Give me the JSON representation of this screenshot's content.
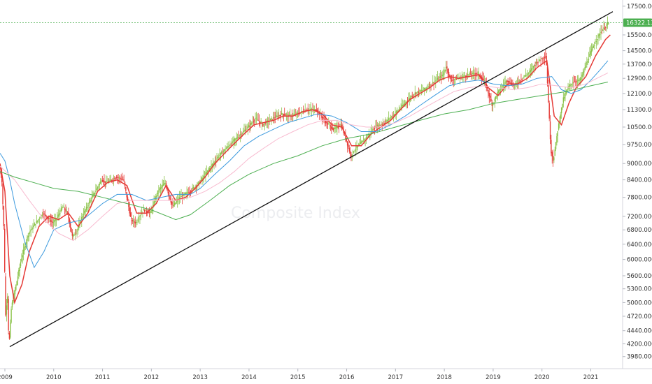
{
  "chart_data": {
    "type": "candlestick",
    "title": "",
    "watermark": "Composite Index",
    "xlabel": "",
    "ylabel": "",
    "scale": "log",
    "ylim": [
      3850,
      17700
    ],
    "xlim": [
      2008.9,
      2021.58
    ],
    "grid": false,
    "legend": "none",
    "x_ticks": [
      {
        "label": "2009",
        "x": 2009.0
      },
      {
        "label": "2010",
        "x": 2010.0
      },
      {
        "label": "2011",
        "x": 2011.0
      },
      {
        "label": "2012",
        "x": 2012.0
      },
      {
        "label": "2013",
        "x": 2013.0
      },
      {
        "label": "2014",
        "x": 2014.0
      },
      {
        "label": "2015",
        "x": 2015.0
      },
      {
        "label": "2016",
        "x": 2016.0
      },
      {
        "label": "2017",
        "x": 2017.0
      },
      {
        "label": "2018",
        "x": 2018.0
      },
      {
        "label": "2019",
        "x": 2019.0
      },
      {
        "label": "2020",
        "x": 2020.0
      },
      {
        "label": "2021",
        "x": 2021.0
      }
    ],
    "y_ticks": [
      {
        "label": "17500.000",
        "v": 17500
      },
      {
        "label": "15500.000",
        "v": 15500
      },
      {
        "label": "14500.000",
        "v": 14500
      },
      {
        "label": "13700.000",
        "v": 13700
      },
      {
        "label": "12900.000",
        "v": 12900
      },
      {
        "label": "12100.000",
        "v": 12100
      },
      {
        "label": "11300.000",
        "v": 11300
      },
      {
        "label": "10500.000",
        "v": 10500
      },
      {
        "label": "9750.000",
        "v": 9750
      },
      {
        "label": "9000.000",
        "v": 9000
      },
      {
        "label": "8400.000",
        "v": 8400
      },
      {
        "label": "7800.000",
        "v": 7800
      },
      {
        "label": "7200.000",
        "v": 7200
      },
      {
        "label": "6800.000",
        "v": 6800
      },
      {
        "label": "6400.000",
        "v": 6400
      },
      {
        "label": "6000.000",
        "v": 6000
      },
      {
        "label": "5600.000",
        "v": 5600
      },
      {
        "label": "5300.000",
        "v": 5300
      },
      {
        "label": "5000.000",
        "v": 5000
      },
      {
        "label": "4720.000",
        "v": 4720
      },
      {
        "label": "4440.000",
        "v": 4440
      },
      {
        "label": "4200.000",
        "v": 4200
      },
      {
        "label": "3980.000",
        "v": 3980
      }
    ],
    "last_price": {
      "label": "16322.131",
      "value": 16322.131,
      "color": "#4caf50"
    },
    "price_path": [
      [
        2008.9,
        8700
      ],
      [
        2008.95,
        8600
      ],
      [
        2009.0,
        6700
      ],
      [
        2009.03,
        4700
      ],
      [
        2009.07,
        5200
      ],
      [
        2009.1,
        4150
      ],
      [
        2009.15,
        4900
      ],
      [
        2009.25,
        5400
      ],
      [
        2009.35,
        6000
      ],
      [
        2009.5,
        6700
      ],
      [
        2009.65,
        7000
      ],
      [
        2009.8,
        7300
      ],
      [
        2010.0,
        7000
      ],
      [
        2010.1,
        7200
      ],
      [
        2010.2,
        7500
      ],
      [
        2010.3,
        7300
      ],
      [
        2010.4,
        6600
      ],
      [
        2010.5,
        6800
      ],
      [
        2010.6,
        7200
      ],
      [
        2010.8,
        7800
      ],
      [
        2011.0,
        8400
      ],
      [
        2011.1,
        8300
      ],
      [
        2011.3,
        8500
      ],
      [
        2011.45,
        8400
      ],
      [
        2011.6,
        7100
      ],
      [
        2011.7,
        7000
      ],
      [
        2011.85,
        7400
      ],
      [
        2012.0,
        7300
      ],
      [
        2012.15,
        8000
      ],
      [
        2012.3,
        8300
      ],
      [
        2012.45,
        7500
      ],
      [
        2012.6,
        7800
      ],
      [
        2012.8,
        8000
      ],
      [
        2013.0,
        8300
      ],
      [
        2013.2,
        8800
      ],
      [
        2013.4,
        9300
      ],
      [
        2013.6,
        9700
      ],
      [
        2013.8,
        10100
      ],
      [
        2014.0,
        10500
      ],
      [
        2014.15,
        10900
      ],
      [
        2014.3,
        10600
      ],
      [
        2014.5,
        10900
      ],
      [
        2014.7,
        11100
      ],
      [
        2014.85,
        11000
      ],
      [
        2015.0,
        11100
      ],
      [
        2015.2,
        11300
      ],
      [
        2015.4,
        11300
      ],
      [
        2015.6,
        10700
      ],
      [
        2015.75,
        10400
      ],
      [
        2015.9,
        10600
      ],
      [
        2016.0,
        10000
      ],
      [
        2016.1,
        9300
      ],
      [
        2016.2,
        9600
      ],
      [
        2016.4,
        10000
      ],
      [
        2016.6,
        10500
      ],
      [
        2016.8,
        10700
      ],
      [
        2017.0,
        11100
      ],
      [
        2017.2,
        11600
      ],
      [
        2017.4,
        12100
      ],
      [
        2017.6,
        12300
      ],
      [
        2017.8,
        12700
      ],
      [
        2018.0,
        13100
      ],
      [
        2018.05,
        13600
      ],
      [
        2018.15,
        12800
      ],
      [
        2018.3,
        12900
      ],
      [
        2018.5,
        13100
      ],
      [
        2018.7,
        13200
      ],
      [
        2018.85,
        12700
      ],
      [
        2019.0,
        11500
      ],
      [
        2019.1,
        12100
      ],
      [
        2019.3,
        12800
      ],
      [
        2019.45,
        12500
      ],
      [
        2019.6,
        12900
      ],
      [
        2019.75,
        13200
      ],
      [
        2019.9,
        13800
      ],
      [
        2020.1,
        14200
      ],
      [
        2020.2,
        9500
      ],
      [
        2020.25,
        9100
      ],
      [
        2020.35,
        10500
      ],
      [
        2020.45,
        11800
      ],
      [
        2020.55,
        12400
      ],
      [
        2020.65,
        12700
      ],
      [
        2020.8,
        12800
      ],
      [
        2020.9,
        13500
      ],
      [
        2021.0,
        14300
      ],
      [
        2021.1,
        15000
      ],
      [
        2021.2,
        15600
      ],
      [
        2021.3,
        16000
      ],
      [
        2021.38,
        16322
      ]
    ],
    "series": [
      {
        "color": "#e53935",
        "values": [
          [
            2008.9,
            9000
          ],
          [
            2009.0,
            8000
          ],
          [
            2009.1,
            5600
          ],
          [
            2009.2,
            5000
          ],
          [
            2009.35,
            5400
          ],
          [
            2009.5,
            6200
          ],
          [
            2009.7,
            6900
          ],
          [
            2009.9,
            7200
          ],
          [
            2010.1,
            7100
          ],
          [
            2010.3,
            7300
          ],
          [
            2010.5,
            6900
          ],
          [
            2010.7,
            7300
          ],
          [
            2010.9,
            8000
          ],
          [
            2011.1,
            8300
          ],
          [
            2011.3,
            8400
          ],
          [
            2011.5,
            8200
          ],
          [
            2011.7,
            7300
          ],
          [
            2011.9,
            7300
          ],
          [
            2012.1,
            7600
          ],
          [
            2012.3,
            8200
          ],
          [
            2012.5,
            7700
          ],
          [
            2012.7,
            7800
          ],
          [
            2012.9,
            8100
          ],
          [
            2013.1,
            8500
          ],
          [
            2013.3,
            9000
          ],
          [
            2013.5,
            9400
          ],
          [
            2013.7,
            9800
          ],
          [
            2013.9,
            10200
          ],
          [
            2014.1,
            10600
          ],
          [
            2014.3,
            10700
          ],
          [
            2014.5,
            10800
          ],
          [
            2014.7,
            11000
          ],
          [
            2014.9,
            11000
          ],
          [
            2015.1,
            11200
          ],
          [
            2015.3,
            11300
          ],
          [
            2015.5,
            11100
          ],
          [
            2015.7,
            10600
          ],
          [
            2015.9,
            10500
          ],
          [
            2016.1,
            9700
          ],
          [
            2016.3,
            9700
          ],
          [
            2016.5,
            10200
          ],
          [
            2016.7,
            10500
          ],
          [
            2016.9,
            10800
          ],
          [
            2017.1,
            11300
          ],
          [
            2017.3,
            11800
          ],
          [
            2017.5,
            12100
          ],
          [
            2017.7,
            12400
          ],
          [
            2017.9,
            12800
          ],
          [
            2018.1,
            13000
          ],
          [
            2018.3,
            12900
          ],
          [
            2018.5,
            13000
          ],
          [
            2018.7,
            13100
          ],
          [
            2018.9,
            12400
          ],
          [
            2019.1,
            12000
          ],
          [
            2019.3,
            12600
          ],
          [
            2019.5,
            12600
          ],
          [
            2019.7,
            12900
          ],
          [
            2019.9,
            13500
          ],
          [
            2020.1,
            13900
          ],
          [
            2020.25,
            11000
          ],
          [
            2020.4,
            10600
          ],
          [
            2020.55,
            11600
          ],
          [
            2020.7,
            12400
          ],
          [
            2020.9,
            13000
          ],
          [
            2021.1,
            14200
          ],
          [
            2021.3,
            15200
          ],
          [
            2021.4,
            15500
          ]
        ]
      },
      {
        "color": "#3d9ade",
        "values": [
          [
            2008.9,
            9400
          ],
          [
            2009.0,
            9100
          ],
          [
            2009.1,
            8400
          ],
          [
            2009.2,
            7600
          ],
          [
            2009.4,
            6500
          ],
          [
            2009.6,
            5800
          ],
          [
            2009.8,
            6200
          ],
          [
            2010.0,
            6800
          ],
          [
            2010.3,
            7000
          ],
          [
            2010.6,
            7100
          ],
          [
            2011.0,
            7600
          ],
          [
            2011.3,
            7900
          ],
          [
            2011.6,
            7900
          ],
          [
            2011.9,
            7700
          ],
          [
            2012.2,
            7800
          ],
          [
            2012.5,
            7900
          ],
          [
            2012.8,
            7900
          ],
          [
            2013.0,
            8100
          ],
          [
            2013.3,
            8600
          ],
          [
            2013.6,
            9100
          ],
          [
            2013.9,
            9700
          ],
          [
            2014.2,
            10100
          ],
          [
            2014.5,
            10400
          ],
          [
            2014.8,
            10700
          ],
          [
            2015.1,
            10900
          ],
          [
            2015.4,
            11100
          ],
          [
            2015.7,
            11000
          ],
          [
            2016.0,
            10700
          ],
          [
            2016.3,
            10300
          ],
          [
            2016.6,
            10300
          ],
          [
            2016.9,
            10600
          ],
          [
            2017.2,
            11000
          ],
          [
            2017.5,
            11500
          ],
          [
            2017.8,
            12000
          ],
          [
            2018.1,
            12500
          ],
          [
            2018.4,
            12700
          ],
          [
            2018.7,
            12800
          ],
          [
            2019.0,
            12600
          ],
          [
            2019.3,
            12500
          ],
          [
            2019.6,
            12600
          ],
          [
            2019.9,
            12900
          ],
          [
            2020.2,
            13000
          ],
          [
            2020.4,
            12300
          ],
          [
            2020.6,
            12100
          ],
          [
            2020.8,
            12300
          ],
          [
            2021.0,
            12800
          ],
          [
            2021.2,
            13400
          ],
          [
            2021.35,
            13900
          ]
        ]
      },
      {
        "color": "#f8bbd0",
        "values": [
          [
            2008.9,
            8900
          ],
          [
            2009.2,
            8400
          ],
          [
            2009.5,
            7700
          ],
          [
            2009.8,
            7100
          ],
          [
            2010.1,
            6700
          ],
          [
            2010.4,
            6500
          ],
          [
            2010.7,
            6800
          ],
          [
            2011.0,
            7200
          ],
          [
            2011.3,
            7600
          ],
          [
            2011.6,
            7700
          ],
          [
            2011.9,
            7700
          ],
          [
            2012.2,
            7700
          ],
          [
            2012.5,
            7700
          ],
          [
            2012.8,
            7800
          ],
          [
            2013.1,
            8000
          ],
          [
            2013.4,
            8300
          ],
          [
            2013.7,
            8700
          ],
          [
            2014.0,
            9200
          ],
          [
            2014.3,
            9600
          ],
          [
            2014.6,
            10000
          ],
          [
            2014.9,
            10300
          ],
          [
            2015.2,
            10600
          ],
          [
            2015.5,
            10800
          ],
          [
            2015.8,
            10800
          ],
          [
            2016.1,
            10600
          ],
          [
            2016.4,
            10500
          ],
          [
            2016.7,
            10500
          ],
          [
            2017.0,
            10700
          ],
          [
            2017.3,
            11000
          ],
          [
            2017.6,
            11400
          ],
          [
            2017.9,
            11800
          ],
          [
            2018.2,
            12200
          ],
          [
            2018.5,
            12400
          ],
          [
            2018.8,
            12500
          ],
          [
            2019.1,
            12400
          ],
          [
            2019.4,
            12300
          ],
          [
            2019.7,
            12400
          ],
          [
            2020.0,
            12600
          ],
          [
            2020.3,
            12500
          ],
          [
            2020.6,
            12400
          ],
          [
            2020.9,
            12600
          ],
          [
            2021.2,
            13000
          ],
          [
            2021.35,
            13200
          ]
        ]
      },
      {
        "color": "#4caf50",
        "values": [
          [
            2008.9,
            8700
          ],
          [
            2009.2,
            8500
          ],
          [
            2009.6,
            8300
          ],
          [
            2010.0,
            8100
          ],
          [
            2010.5,
            8000
          ],
          [
            2011.0,
            7800
          ],
          [
            2011.5,
            7600
          ],
          [
            2012.0,
            7400
          ],
          [
            2012.5,
            7100
          ],
          [
            2012.8,
            7250
          ],
          [
            2013.2,
            7700
          ],
          [
            2013.6,
            8200
          ],
          [
            2014.0,
            8600
          ],
          [
            2014.5,
            9000
          ],
          [
            2015.0,
            9300
          ],
          [
            2015.5,
            9700
          ],
          [
            2016.0,
            10000
          ],
          [
            2016.5,
            10200
          ],
          [
            2017.0,
            10500
          ],
          [
            2017.5,
            10800
          ],
          [
            2018.0,
            11100
          ],
          [
            2018.5,
            11300
          ],
          [
            2019.0,
            11600
          ],
          [
            2019.5,
            11800
          ],
          [
            2020.0,
            12000
          ],
          [
            2020.5,
            12200
          ],
          [
            2021.0,
            12500
          ],
          [
            2021.35,
            12700
          ]
        ]
      }
    ],
    "trendline": {
      "color": "#111111",
      "points": [
        [
          2009.1,
          4150
        ],
        [
          2021.45,
          17100
        ]
      ]
    }
  }
}
